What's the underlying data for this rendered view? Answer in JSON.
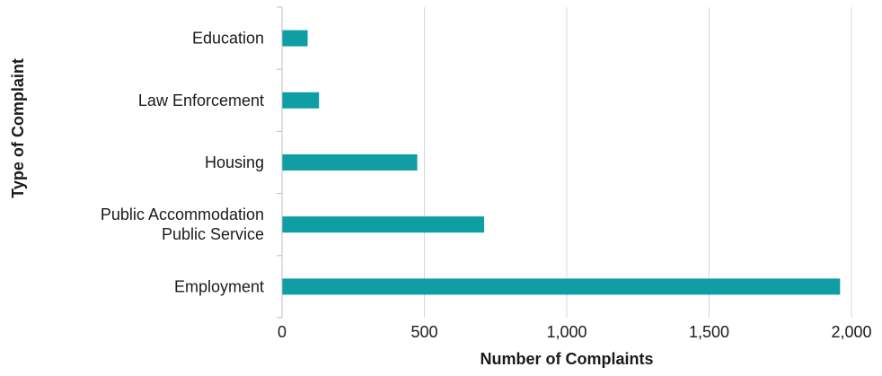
{
  "chart_data": {
    "type": "bar",
    "orientation": "horizontal",
    "categories": [
      [
        "Education"
      ],
      [
        "Law Enforcement"
      ],
      [
        "Housing"
      ],
      [
        "Public Accommodation",
        "Public Service"
      ],
      [
        "Employment"
      ]
    ],
    "values": [
      90,
      130,
      475,
      710,
      1960
    ],
    "xlabel": "Number of Complaints",
    "ylabel": "Type of Complaint",
    "xlim": [
      0,
      2000
    ],
    "xticks": [
      0,
      500,
      1000,
      1500,
      2000
    ],
    "xtick_labels": [
      "0",
      "500",
      "1,000",
      "1,500",
      "2,000"
    ],
    "grid": "vertical",
    "bar_color": "#0e9ea4",
    "grid_color": "#d9d9d9",
    "axis_color": "#bfbfbf"
  }
}
